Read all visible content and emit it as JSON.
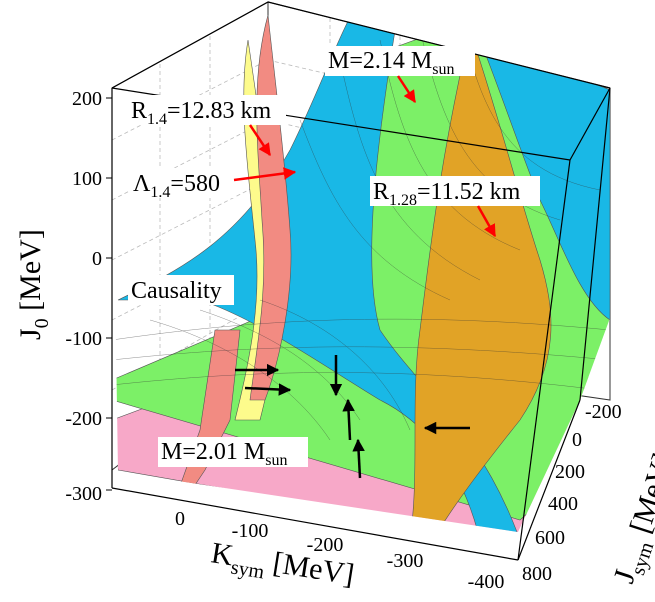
{
  "chart_data": {
    "type": "surface3d",
    "axes": {
      "x": {
        "label_main": "K",
        "label_sub": "sym",
        "label_unit": " [MeV]",
        "ticks": [
          "0",
          "-100",
          "-200",
          "-300",
          "-400"
        ]
      },
      "y": {
        "label_main": "J",
        "label_sub": "sym",
        "label_unit": " [MeV]",
        "ticks": [
          "-200",
          "0",
          "200",
          "400",
          "600",
          "800"
        ]
      },
      "z": {
        "label_main": "J",
        "label_sub": "0",
        "label_unit": " [MeV]",
        "ticks": [
          "200",
          "100",
          "0",
          "-100",
          "-200",
          "-300"
        ]
      }
    },
    "surfaces": [
      {
        "name": "Causality",
        "color": "#19b8e6"
      },
      {
        "name": "M=2.01 Msun",
        "color": "#f7a8c8"
      },
      {
        "name": "M=2.14 Msun",
        "color": "#7cf067"
      },
      {
        "name": "R1.4=12.83 km",
        "color": "#f28b82"
      },
      {
        "name": "Lambda1.4=580",
        "color": "#fdfb8c"
      },
      {
        "name": "R1.28=11.52 km",
        "color": "#e1a326"
      }
    ],
    "annotations": {
      "r14": {
        "main": "R",
        "sub": "1.4",
        "rest": "=12.83 km"
      },
      "lambda14": {
        "main": "Λ",
        "sub": "1.4",
        "rest": "=580"
      },
      "m214": {
        "main": "M=2.14 M",
        "sub": "sun"
      },
      "r128": {
        "main": "R",
        "sub": "1.28",
        "rest": "=11.52 km"
      },
      "causality": {
        "text": "Causality"
      },
      "m201": {
        "main": "M=2.01 M",
        "sub": "sun"
      }
    },
    "colors": {
      "arrow_red": "#ff0000",
      "arrow_black": "#000000",
      "grid_line": "#444444"
    }
  }
}
